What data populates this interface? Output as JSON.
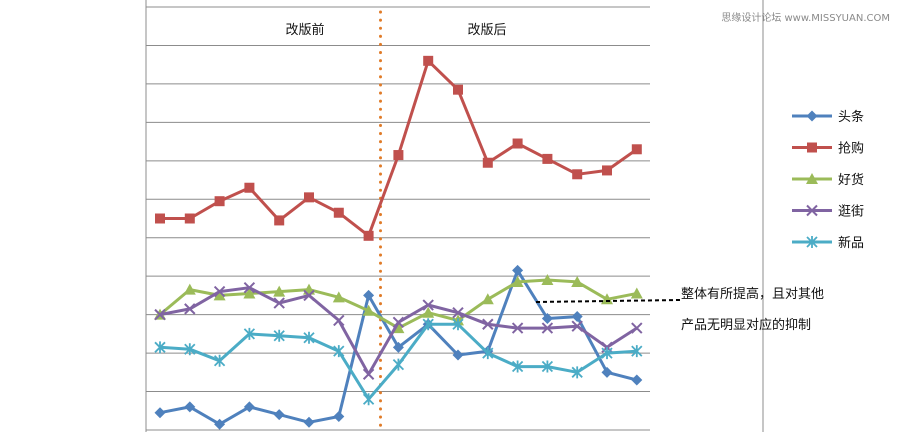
{
  "watermark": "思缘设计论坛 www.MISSYUAN.COM",
  "chart_data": {
    "type": "line",
    "title": "",
    "xlabel": "",
    "ylabel": "",
    "grid": true,
    "x": [
      1,
      2,
      3,
      4,
      5,
      6,
      7,
      8,
      9,
      10,
      11,
      12,
      13,
      14,
      15,
      16,
      17
    ],
    "ylim": [
      0,
      11
    ],
    "divider": {
      "x": 8.4,
      "before_label": "改版前",
      "after_label": "改版后",
      "color": "#e07b28"
    },
    "legend_position": "right",
    "series": [
      {
        "name": "头条",
        "color": "#4f81bd",
        "marker": "diamond",
        "values": [
          0.45,
          0.6,
          0.15,
          0.6,
          0.4,
          0.2,
          0.35,
          3.5,
          2.15,
          2.75,
          1.95,
          2.05,
          4.15,
          2.9,
          2.95,
          1.5,
          1.3
        ]
      },
      {
        "name": "抢购",
        "color": "#c0504d",
        "marker": "square",
        "values": [
          5.5,
          5.5,
          5.95,
          6.3,
          5.45,
          6.05,
          5.65,
          5.05,
          7.15,
          9.6,
          8.85,
          6.95,
          7.45,
          7.05,
          6.65,
          6.75,
          7.3
        ]
      },
      {
        "name": "好货",
        "color": "#9bbb59",
        "marker": "triangle",
        "values": [
          3.0,
          3.65,
          3.5,
          3.55,
          3.6,
          3.65,
          3.45,
          3.1,
          2.65,
          3.05,
          2.85,
          3.4,
          3.85,
          3.9,
          3.85,
          3.4,
          3.55
        ]
      },
      {
        "name": "逛街",
        "color": "#8064a2",
        "marker": "x",
        "values": [
          3.0,
          3.15,
          3.6,
          3.7,
          3.3,
          3.5,
          2.85,
          1.45,
          2.8,
          3.25,
          3.05,
          2.75,
          2.65,
          2.65,
          2.7,
          2.15,
          2.65
        ]
      },
      {
        "name": "新品",
        "color": "#4bacc6",
        "marker": "asterisk",
        "values": [
          2.15,
          2.1,
          1.8,
          2.5,
          2.45,
          2.4,
          2.05,
          0.8,
          1.7,
          2.75,
          2.75,
          2.0,
          1.65,
          1.65,
          1.5,
          2.0,
          2.05
        ]
      }
    ],
    "annotation": {
      "lines": [
        "整体有所提高，且对其他",
        "产品无明显对应的抑制"
      ],
      "pointer_style": "dashed"
    }
  }
}
